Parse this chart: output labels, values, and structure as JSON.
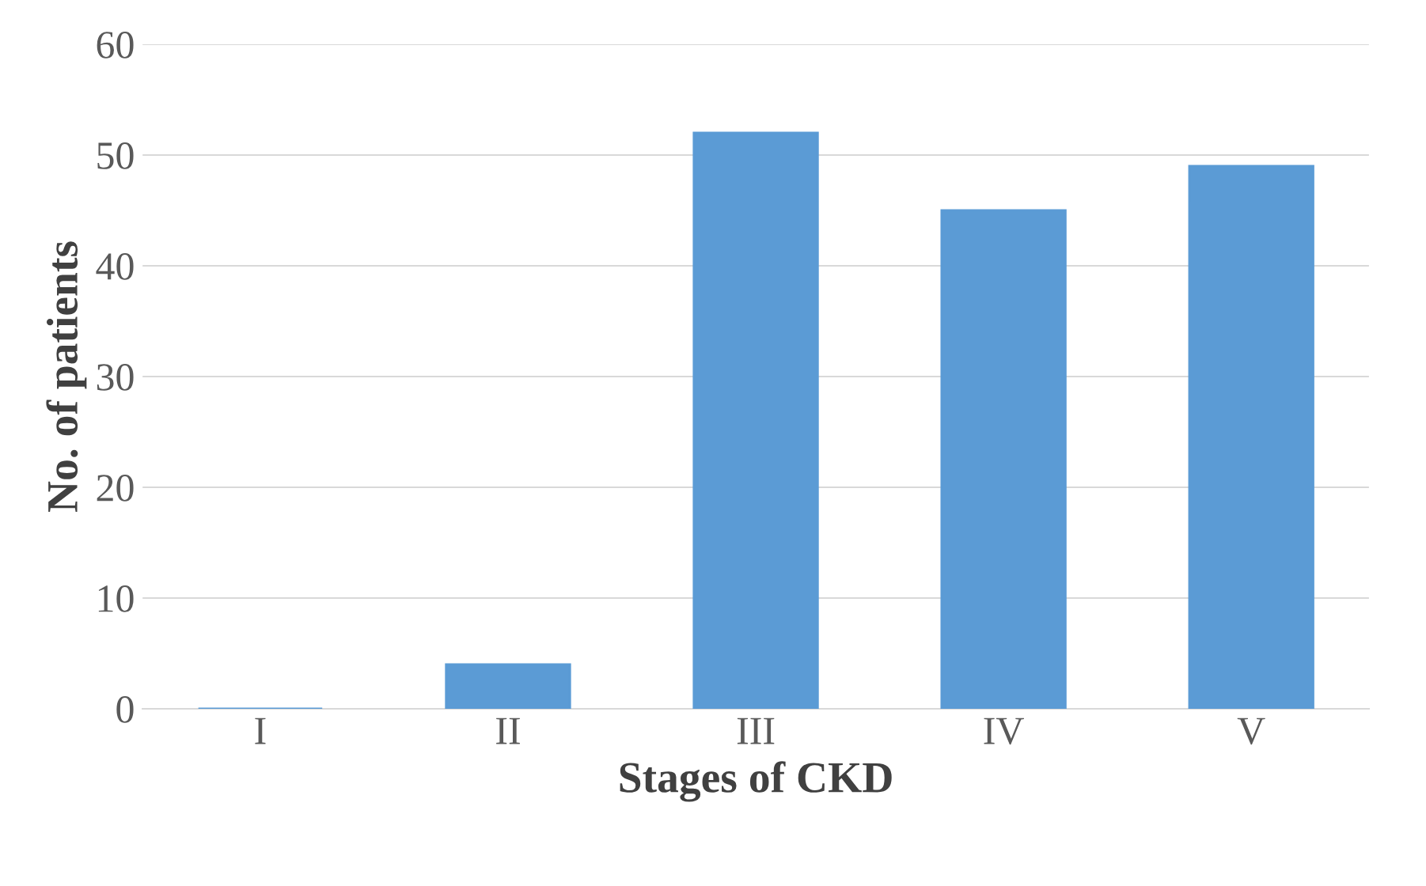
{
  "chart_data": {
    "type": "bar",
    "xlabel": "Stages of CKD",
    "ylabel": "No. of patients",
    "categories": [
      "I",
      "II",
      "III",
      "IV",
      "V"
    ],
    "values": [
      0,
      4,
      52,
      45,
      49
    ],
    "color": "#5b9bd5",
    "ylim": [
      0,
      60
    ],
    "yticks": [
      0,
      10,
      20,
      30,
      40,
      50,
      60
    ],
    "grid": "y"
  }
}
